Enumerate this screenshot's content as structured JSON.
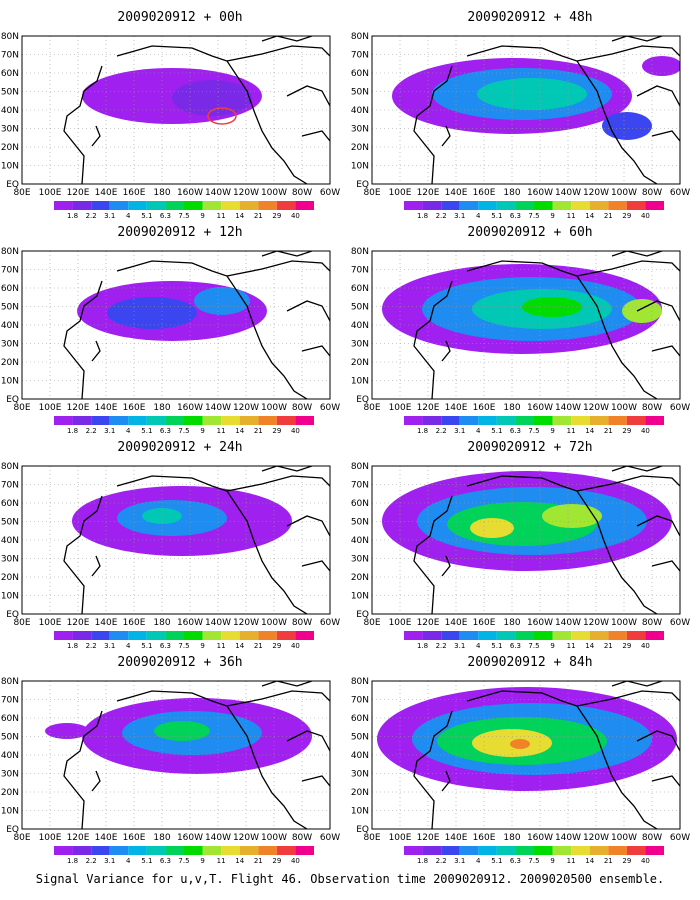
{
  "panels": [
    {
      "title": "2009020912 + 00h"
    },
    {
      "title": "2009020912 + 48h"
    },
    {
      "title": "2009020912 + 12h"
    },
    {
      "title": "2009020912 + 60h"
    },
    {
      "title": "2009020912 + 24h"
    },
    {
      "title": "2009020912 + 72h"
    },
    {
      "title": "2009020912 + 36h"
    },
    {
      "title": "2009020912 + 84h"
    }
  ],
  "lat_labels": [
    "80N",
    "70N",
    "60N",
    "50N",
    "40N",
    "30N",
    "20N",
    "10N",
    "EQ"
  ],
  "lon_labels": [
    "80E",
    "100E",
    "120E",
    "140E",
    "160E",
    "180",
    "160W",
    "140W",
    "120W",
    "100W",
    "80W",
    "60W"
  ],
  "colorbar": {
    "levels": [
      "1.8",
      "2.2",
      "3.1",
      "4",
      "5.1",
      "6.3",
      "7.5",
      "9",
      "11",
      "14",
      "21",
      "29",
      "40"
    ],
    "colors": [
      "#a020f0",
      "#7a2ae6",
      "#3c46f0",
      "#1e8cf0",
      "#00b4e6",
      "#00c8b4",
      "#00d25a",
      "#00dc00",
      "#a0e632",
      "#e6dc32",
      "#e6af2d",
      "#f08228",
      "#f03c3c",
      "#f0008c"
    ]
  },
  "footer": "Signal Variance for u,v,T. Flight 46. Observation time 2009020912. 2009020500 ensemble."
}
